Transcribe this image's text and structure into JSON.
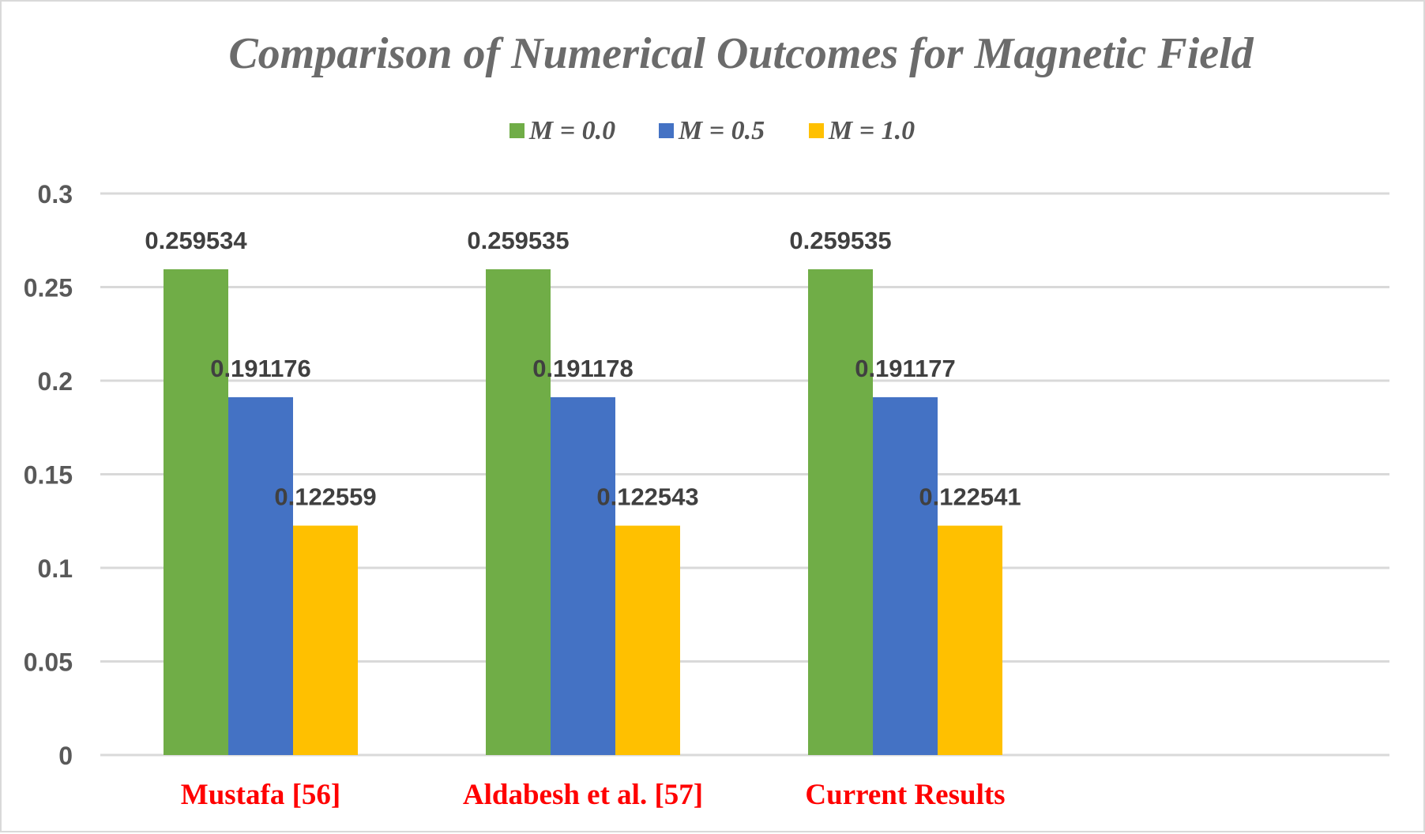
{
  "chart_data": {
    "type": "bar",
    "title": "Comparison of Numerical Outcomes for Magnetic Field",
    "categories": [
      "Mustafa [56]",
      "Aldabesh et al. [57]",
      "Current Results"
    ],
    "category_color": "#ff0000",
    "series": [
      {
        "name": "M = 0.0",
        "color": "#70ad47",
        "values": [
          0.259534,
          0.259535,
          0.259535
        ],
        "labels": [
          "0.259534",
          "0.259535",
          "0.259535"
        ]
      },
      {
        "name": "M = 0.5",
        "color": "#4472c4",
        "values": [
          0.191176,
          0.191178,
          0.191177
        ],
        "labels": [
          "0.191176",
          "0.191178",
          "0.191177"
        ]
      },
      {
        "name": "M = 1.0",
        "color": "#ffc000",
        "values": [
          0.122559,
          0.122543,
          0.122541
        ],
        "labels": [
          "0.122559",
          "0.122543",
          "0.122541"
        ]
      }
    ],
    "ylim": [
      0,
      0.3
    ],
    "yticks": [
      "0",
      "0.05",
      "0.1",
      "0.15",
      "0.2",
      "0.25",
      "0.3"
    ],
    "grid": true,
    "legend_position": "top"
  }
}
